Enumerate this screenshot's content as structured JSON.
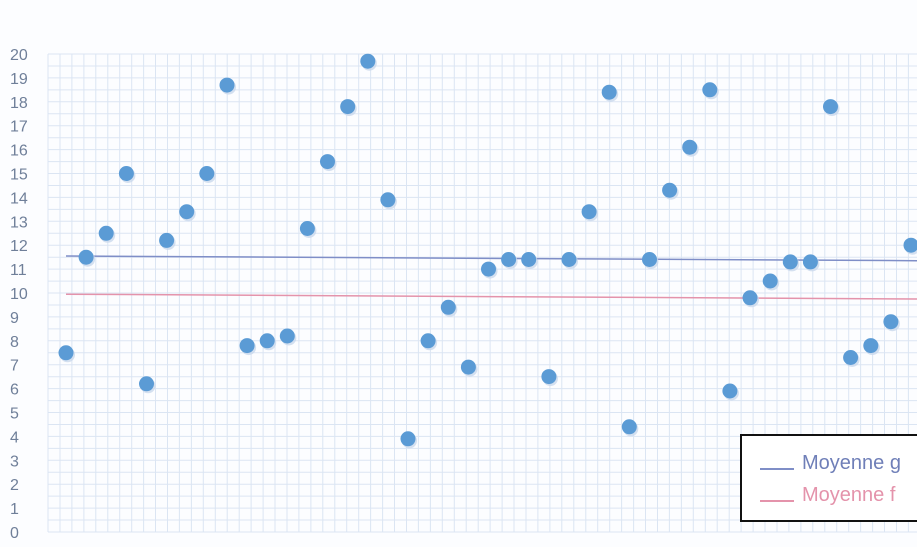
{
  "chart_data": {
    "type": "scatter",
    "title": "",
    "xlabel": "",
    "ylabel": "",
    "ylim": [
      0,
      20
    ],
    "yticks": [
      "0",
      "1",
      "2",
      "3",
      "4",
      "5",
      "6",
      "7",
      "8",
      "9",
      "10",
      "11",
      "12",
      "13",
      "14",
      "15",
      "16",
      "17",
      "18",
      "19",
      "20"
    ],
    "grid": true,
    "point_color": "#5b9bd5",
    "values": [
      7.5,
      11.5,
      12.5,
      15.0,
      6.2,
      12.2,
      13.4,
      15.0,
      18.7,
      7.8,
      8.0,
      8.2,
      12.7,
      15.5,
      17.8,
      19.7,
      13.9,
      3.9,
      8.0,
      9.4,
      6.9,
      11.0,
      11.4,
      11.4,
      6.5,
      11.4,
      13.4,
      18.4,
      4.4,
      11.4,
      14.3,
      16.1,
      18.5,
      5.9,
      9.8,
      10.5,
      11.3,
      11.3,
      17.8,
      7.3,
      7.8,
      8.8,
      12.0
    ],
    "reference_lines": [
      {
        "label": "Moyenne g",
        "y_start": 11.55,
        "y_end": 11.35,
        "color": "#7f8ec7"
      },
      {
        "label": "Moyenne f",
        "y_start": 9.95,
        "y_end": 9.75,
        "color": "#e493ab"
      }
    ],
    "legend": {
      "position": "bottom-right"
    }
  }
}
